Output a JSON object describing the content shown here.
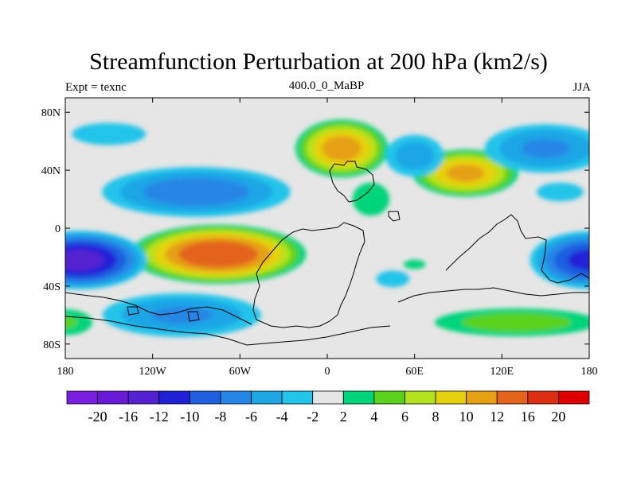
{
  "title": "Streamfunction Perturbation at 200 hPa (km2/s)",
  "subtitle_left": "Expt = texnc",
  "subtitle_center": "400.0_0_MaBP",
  "subtitle_right": "JJA",
  "chart_data": {
    "type": "heatmap",
    "projection": "cylindrical-equidistant",
    "x_ticks": [
      "180",
      "120W",
      "60W",
      "0",
      "60E",
      "120E",
      "180"
    ],
    "y_ticks": [
      "80N",
      "40N",
      "0",
      "40S",
      "80S"
    ],
    "lon_range": [
      -180,
      180
    ],
    "lat_range": [
      -90,
      90
    ],
    "levels": [
      -20,
      -16,
      -12,
      -10,
      -8,
      -6,
      -4,
      -2,
      2,
      4,
      6,
      8,
      10,
      12,
      16,
      20
    ],
    "level_labels": [
      "-20",
      "-16",
      "-12",
      "-10",
      "-8",
      "-6",
      "-4",
      "-2",
      "2",
      "4",
      "6",
      "8",
      "10",
      "12",
      "16",
      "20"
    ],
    "colors": [
      "#7a1fe0",
      "#6a1ad6",
      "#5520d0",
      "#2020d8",
      "#1f5fe0",
      "#2686e6",
      "#1ea6e6",
      "#22c4ea",
      "#e6e6e6",
      "#00d47a",
      "#5ad21c",
      "#b4e21a",
      "#e6d20a",
      "#e6a012",
      "#e4641c",
      "#dc2e12",
      "#e00000"
    ],
    "centers": [
      {
        "lon": 10,
        "lat": 55,
        "value": 10.5,
        "rx": 35,
        "ry": 22
      },
      {
        "lon": 95,
        "lat": 38,
        "value": 10,
        "rx": 40,
        "ry": 18
      },
      {
        "lon": -75,
        "lat": -18,
        "value": 13,
        "rx": 65,
        "ry": 22
      },
      {
        "lon": 130,
        "lat": -65,
        "value": 5,
        "rx": 70,
        "ry": 12
      },
      {
        "lon": -180,
        "lat": -65,
        "value": 4,
        "rx": 25,
        "ry": 12
      },
      {
        "lon": 30,
        "lat": 20,
        "value": 3,
        "rx": 20,
        "ry": 18
      },
      {
        "lon": 60,
        "lat": -25,
        "value": 3,
        "rx": 12,
        "ry": 5
      },
      {
        "lon": -170,
        "lat": -22,
        "value": -12,
        "rx": 50,
        "ry": 22
      },
      {
        "lon": 180,
        "lat": -22,
        "value": -10,
        "rx": 45,
        "ry": 22
      },
      {
        "lon": -90,
        "lat": 25,
        "value": -7,
        "rx": 75,
        "ry": 20
      },
      {
        "lon": -150,
        "lat": 65,
        "value": -3,
        "rx": 40,
        "ry": 12
      },
      {
        "lon": -100,
        "lat": -60,
        "value": -6,
        "rx": 65,
        "ry": 18
      },
      {
        "lon": 60,
        "lat": 50,
        "value": -5,
        "rx": 25,
        "ry": 18
      },
      {
        "lon": 150,
        "lat": 55,
        "value": -6,
        "rx": 50,
        "ry": 20
      },
      {
        "lon": 45,
        "lat": -35,
        "value": -3,
        "rx": 18,
        "ry": 9
      },
      {
        "lon": 160,
        "lat": 25,
        "value": -2.5,
        "rx": 30,
        "ry": 12
      }
    ]
  }
}
